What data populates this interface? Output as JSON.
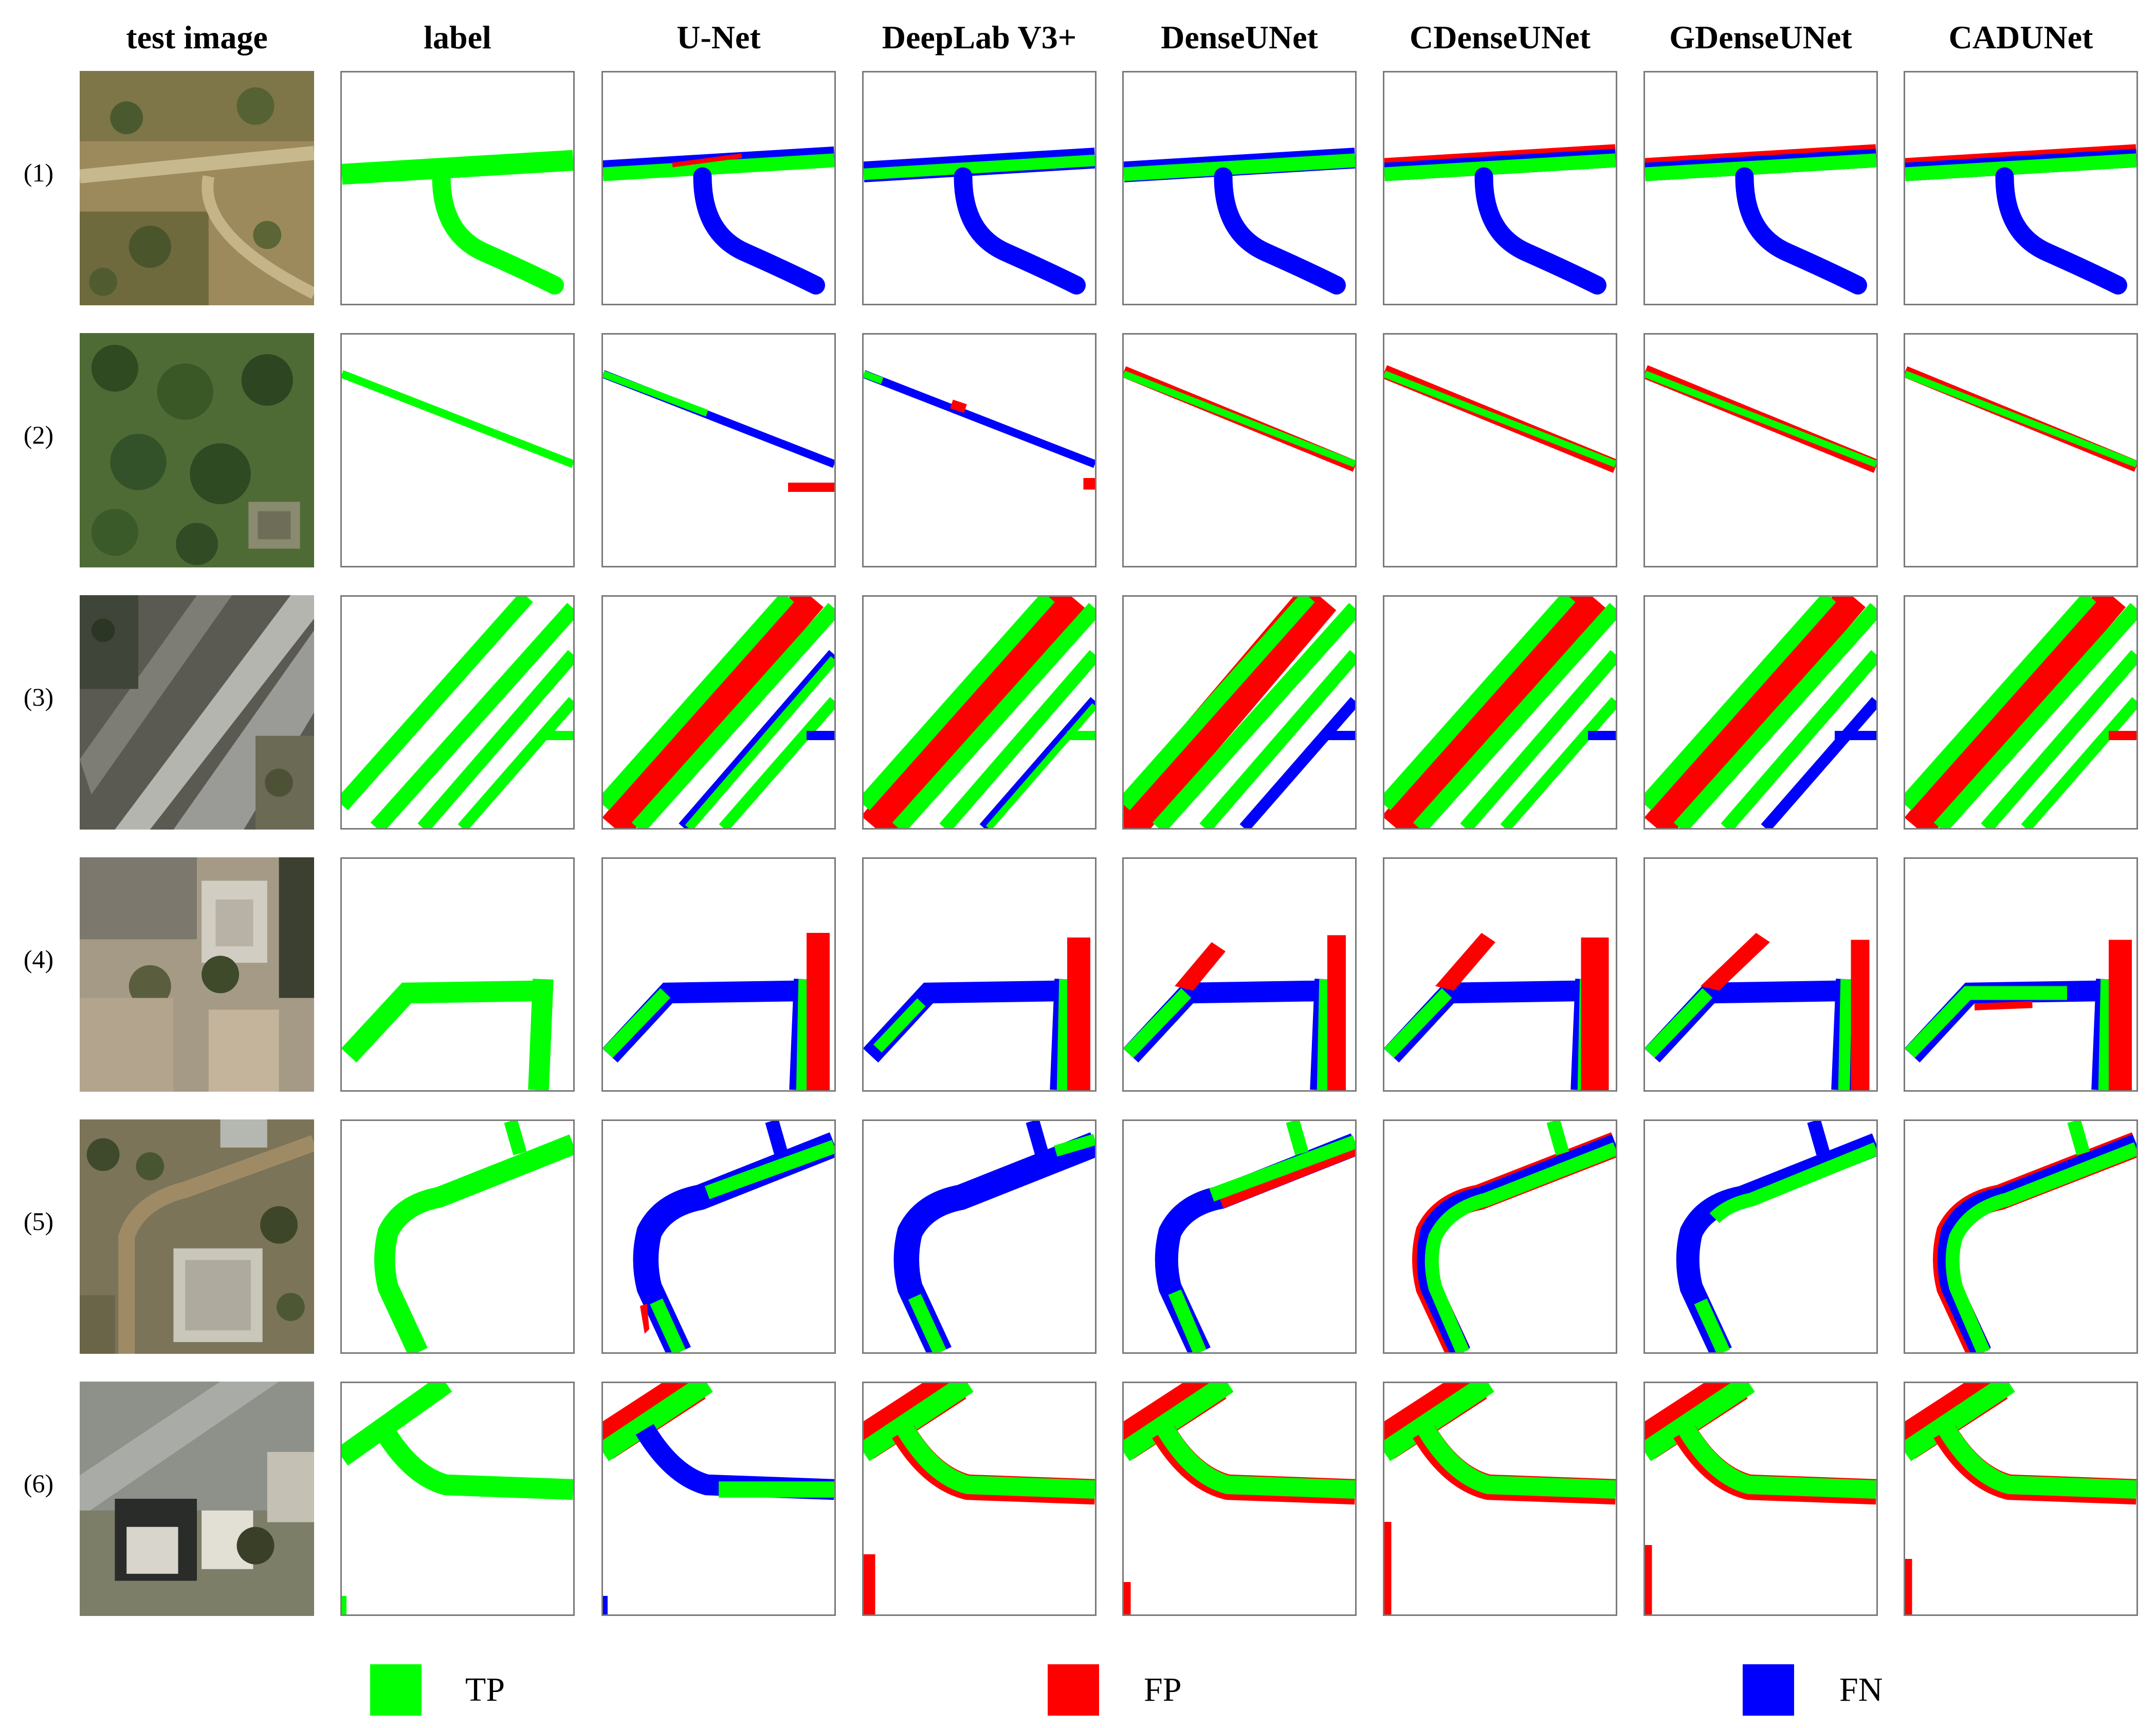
{
  "columns": [
    "test image",
    "label",
    "U-Net",
    "DeepLab V3+",
    "DenseUNet",
    "CDenseUNet",
    "GDenseUNet",
    "CADUNet"
  ],
  "rows": [
    "(1)",
    "(2)",
    "(3)",
    "(4)",
    "(5)",
    "(6)"
  ],
  "legend": [
    {
      "label": "TP",
      "color": "#00ff00"
    },
    {
      "label": "FP",
      "color": "#ff0000"
    },
    {
      "label": "FN",
      "color": "#0000ff"
    }
  ],
  "colors": {
    "tp": "#00ff00",
    "fp": "#ff0000",
    "fn": "#0000ff",
    "tile_border": "#7a7a7a"
  }
}
